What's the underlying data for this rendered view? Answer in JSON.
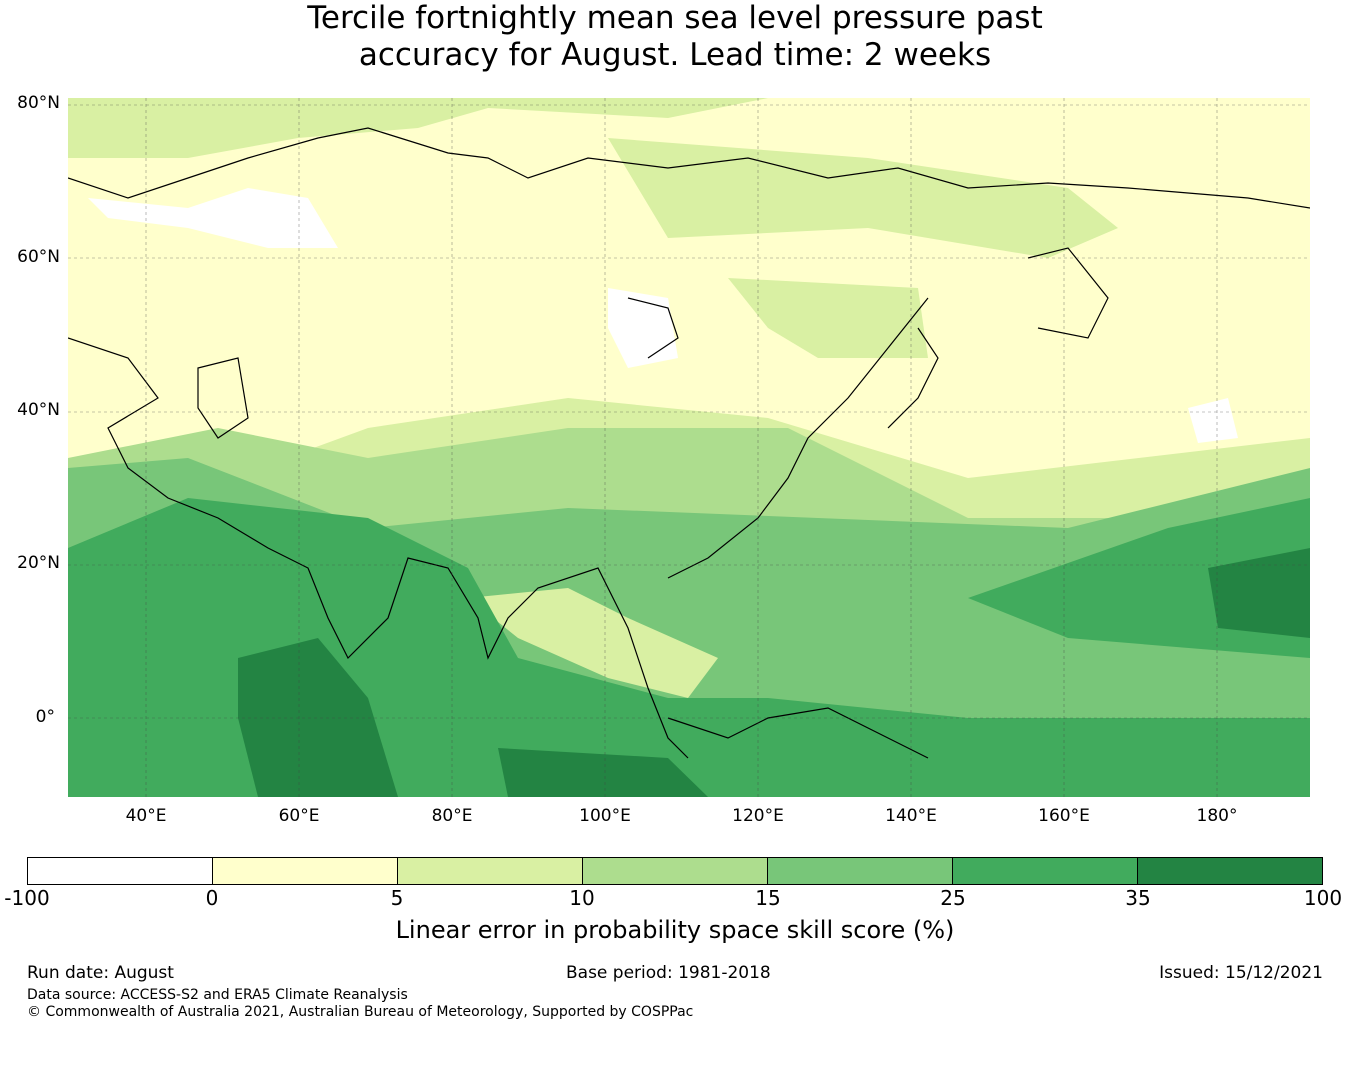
{
  "title_line1": "Tercile fortnightly mean sea level pressure past",
  "title_line2": "accuracy for August. Lead time: 2 weeks",
  "lat_labels": [
    "80°N",
    "60°N",
    "40°N",
    "20°N",
    "0°"
  ],
  "lon_labels": [
    "40°E",
    "60°E",
    "80°E",
    "100°E",
    "120°E",
    "140°E",
    "160°E",
    "180°"
  ],
  "colorbar": {
    "label": "Linear error in probability space skill score (%)",
    "ticks": [
      "-100",
      "0",
      "5",
      "10",
      "15",
      "25",
      "35",
      "100"
    ],
    "colors": [
      "#ffffff",
      "#ffffcc",
      "#d9f0a3",
      "#addd8e",
      "#78c679",
      "#41ab5d",
      "#238443"
    ]
  },
  "footer": {
    "run_date": "Run date: August",
    "base_period": "Base period: 1981-2018",
    "issued": "Issued: 15/12/2021",
    "data_source": "Data source: ACCESS-S2 and ERA5 Climate Reanalysis",
    "copyright": "© Commonwealth of Australia 2021, Australian Bureau of Meteorology, Supported by COSPPac"
  }
}
